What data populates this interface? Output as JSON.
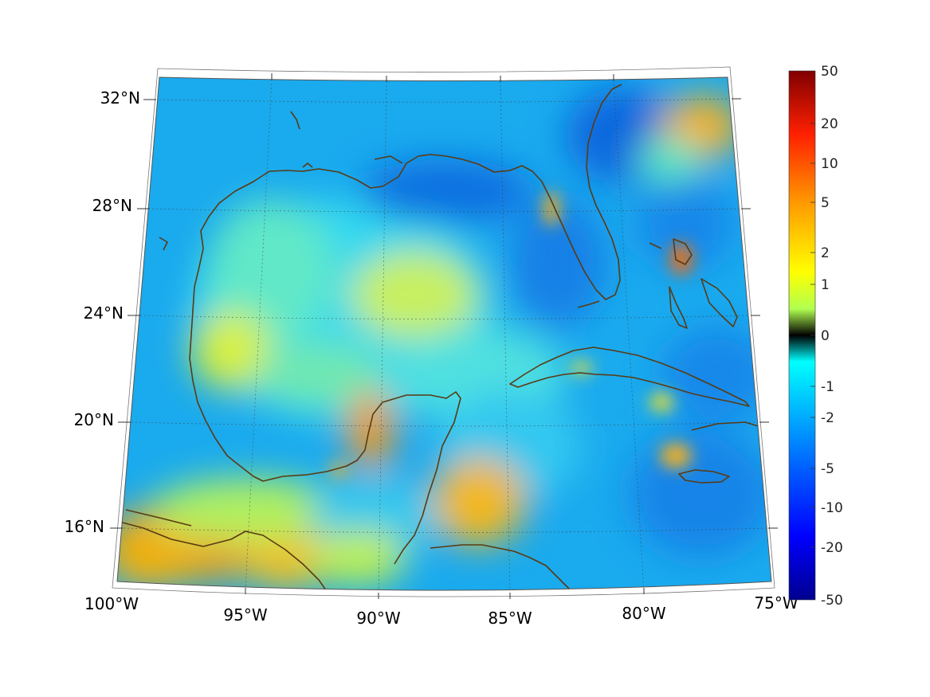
{
  "map": {
    "lon_labels": [
      "100°W",
      "95°W",
      "90°W",
      "85°W",
      "80°W",
      "75°W"
    ],
    "lat_labels": [
      "32°N",
      "28°N",
      "24°N",
      "20°N",
      "16°N"
    ],
    "extent": {
      "lon": [
        -100,
        -75
      ],
      "lat": [
        14,
        33
      ]
    },
    "coastline_color": "#5a3a12",
    "gridlines": "dotted"
  },
  "colorbar": {
    "labels": [
      "50",
      "20",
      "10",
      "5",
      "2",
      "1",
      "0",
      "-1",
      "-2",
      "-5",
      "-10",
      "-20",
      "-50"
    ],
    "colormap": "jet",
    "range": [
      -50,
      50
    ]
  }
}
